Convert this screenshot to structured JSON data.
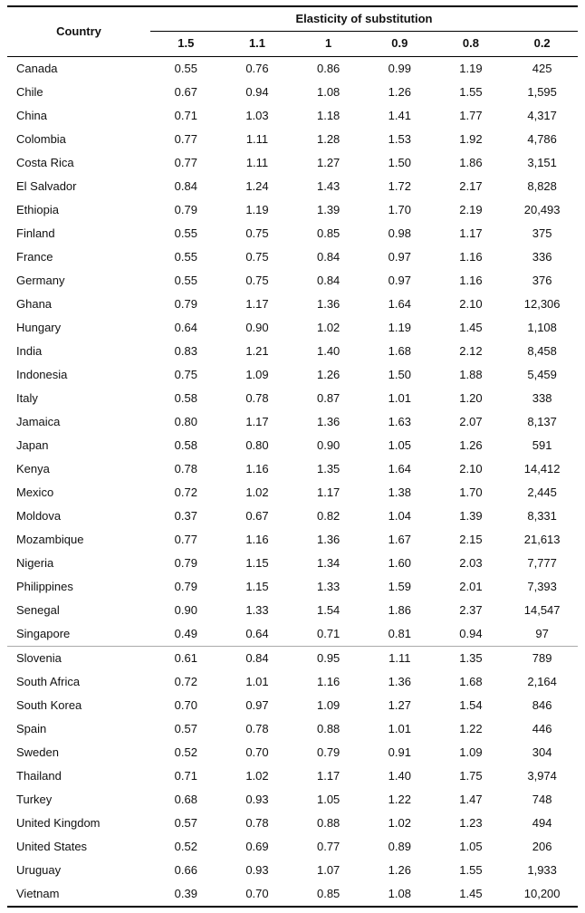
{
  "chart_data": {
    "type": "table",
    "title": "Elasticity of substitution",
    "country_column_header": "Country",
    "value_column_headers": [
      "1.5",
      "1.1",
      "1",
      "0.9",
      "0.8",
      "0.2"
    ],
    "separator_before_country": "Slovenia",
    "rows": [
      {
        "country": "Canada",
        "values": [
          "0.55",
          "0.76",
          "0.86",
          "0.99",
          "1.19",
          "425"
        ]
      },
      {
        "country": "Chile",
        "values": [
          "0.67",
          "0.94",
          "1.08",
          "1.26",
          "1.55",
          "1,595"
        ]
      },
      {
        "country": "China",
        "values": [
          "0.71",
          "1.03",
          "1.18",
          "1.41",
          "1.77",
          "4,317"
        ]
      },
      {
        "country": "Colombia",
        "values": [
          "0.77",
          "1.11",
          "1.28",
          "1.53",
          "1.92",
          "4,786"
        ]
      },
      {
        "country": "Costa Rica",
        "values": [
          "0.77",
          "1.11",
          "1.27",
          "1.50",
          "1.86",
          "3,151"
        ]
      },
      {
        "country": "El Salvador",
        "values": [
          "0.84",
          "1.24",
          "1.43",
          "1.72",
          "2.17",
          "8,828"
        ]
      },
      {
        "country": "Ethiopia",
        "values": [
          "0.79",
          "1.19",
          "1.39",
          "1.70",
          "2.19",
          "20,493"
        ]
      },
      {
        "country": "Finland",
        "values": [
          "0.55",
          "0.75",
          "0.85",
          "0.98",
          "1.17",
          "375"
        ]
      },
      {
        "country": "France",
        "values": [
          "0.55",
          "0.75",
          "0.84",
          "0.97",
          "1.16",
          "336"
        ]
      },
      {
        "country": "Germany",
        "values": [
          "0.55",
          "0.75",
          "0.84",
          "0.97",
          "1.16",
          "376"
        ]
      },
      {
        "country": "Ghana",
        "values": [
          "0.79",
          "1.17",
          "1.36",
          "1.64",
          "2.10",
          "12,306"
        ]
      },
      {
        "country": "Hungary",
        "values": [
          "0.64",
          "0.90",
          "1.02",
          "1.19",
          "1.45",
          "1,108"
        ]
      },
      {
        "country": "India",
        "values": [
          "0.83",
          "1.21",
          "1.40",
          "1.68",
          "2.12",
          "8,458"
        ]
      },
      {
        "country": "Indonesia",
        "values": [
          "0.75",
          "1.09",
          "1.26",
          "1.50",
          "1.88",
          "5,459"
        ]
      },
      {
        "country": "Italy",
        "values": [
          "0.58",
          "0.78",
          "0.87",
          "1.01",
          "1.20",
          "338"
        ]
      },
      {
        "country": "Jamaica",
        "values": [
          "0.80",
          "1.17",
          "1.36",
          "1.63",
          "2.07",
          "8,137"
        ]
      },
      {
        "country": "Japan",
        "values": [
          "0.58",
          "0.80",
          "0.90",
          "1.05",
          "1.26",
          "591"
        ]
      },
      {
        "country": "Kenya",
        "values": [
          "0.78",
          "1.16",
          "1.35",
          "1.64",
          "2.10",
          "14,412"
        ]
      },
      {
        "country": "Mexico",
        "values": [
          "0.72",
          "1.02",
          "1.17",
          "1.38",
          "1.70",
          "2,445"
        ]
      },
      {
        "country": "Moldova",
        "values": [
          "0.37",
          "0.67",
          "0.82",
          "1.04",
          "1.39",
          "8,331"
        ]
      },
      {
        "country": "Mozambique",
        "values": [
          "0.77",
          "1.16",
          "1.36",
          "1.67",
          "2.15",
          "21,613"
        ]
      },
      {
        "country": "Nigeria",
        "values": [
          "0.79",
          "1.15",
          "1.34",
          "1.60",
          "2.03",
          "7,777"
        ]
      },
      {
        "country": "Philippines",
        "values": [
          "0.79",
          "1.15",
          "1.33",
          "1.59",
          "2.01",
          "7,393"
        ]
      },
      {
        "country": "Senegal",
        "values": [
          "0.90",
          "1.33",
          "1.54",
          "1.86",
          "2.37",
          "14,547"
        ]
      },
      {
        "country": "Singapore",
        "values": [
          "0.49",
          "0.64",
          "0.71",
          "0.81",
          "0.94",
          "97"
        ]
      },
      {
        "country": "Slovenia",
        "values": [
          "0.61",
          "0.84",
          "0.95",
          "1.11",
          "1.35",
          "789"
        ]
      },
      {
        "country": "South Africa",
        "values": [
          "0.72",
          "1.01",
          "1.16",
          "1.36",
          "1.68",
          "2,164"
        ]
      },
      {
        "country": "South Korea",
        "values": [
          "0.70",
          "0.97",
          "1.09",
          "1.27",
          "1.54",
          "846"
        ]
      },
      {
        "country": "Spain",
        "values": [
          "0.57",
          "0.78",
          "0.88",
          "1.01",
          "1.22",
          "446"
        ]
      },
      {
        "country": "Sweden",
        "values": [
          "0.52",
          "0.70",
          "0.79",
          "0.91",
          "1.09",
          "304"
        ]
      },
      {
        "country": "Thailand",
        "values": [
          "0.71",
          "1.02",
          "1.17",
          "1.40",
          "1.75",
          "3,974"
        ]
      },
      {
        "country": "Turkey",
        "values": [
          "0.68",
          "0.93",
          "1.05",
          "1.22",
          "1.47",
          "748"
        ]
      },
      {
        "country": "United Kingdom",
        "values": [
          "0.57",
          "0.78",
          "0.88",
          "1.02",
          "1.23",
          "494"
        ]
      },
      {
        "country": "United States",
        "values": [
          "0.52",
          "0.69",
          "0.77",
          "0.89",
          "1.05",
          "206"
        ]
      },
      {
        "country": "Uruguay",
        "values": [
          "0.66",
          "0.93",
          "1.07",
          "1.26",
          "1.55",
          "1,933"
        ]
      },
      {
        "country": "Vietnam",
        "values": [
          "0.39",
          "0.70",
          "0.85",
          "1.08",
          "1.45",
          "10,200"
        ]
      }
    ]
  }
}
